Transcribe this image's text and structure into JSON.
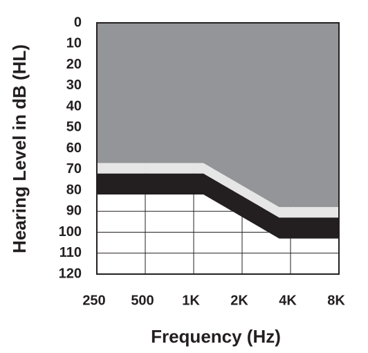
{
  "chart_data": {
    "type": "area",
    "ylabel": "Hearing Level in dB (HL)",
    "xlabel": "Frequency (Hz)",
    "x": [
      250,
      1150,
      3400,
      8000
    ],
    "series": [
      {
        "color": "#939598",
        "values": [
          67,
          67,
          88,
          88
        ]
      },
      {
        "color": "#e6e6e6",
        "values": [
          72,
          72,
          93,
          93
        ]
      },
      {
        "color": "#231f20",
        "values": [
          82,
          82,
          103,
          103
        ]
      }
    ],
    "xscale": "log",
    "xlim": [
      250,
      8000
    ],
    "xticks": [
      250,
      500,
      {
        "value": 1000,
        "label": "1K"
      },
      {
        "value": 2000,
        "label": "2K"
      },
      {
        "value": 4000,
        "label": "4K"
      },
      {
        "value": 8000,
        "label": "8K"
      }
    ],
    "ylim": [
      0,
      120
    ],
    "yinverted": true,
    "yticks": [
      0,
      10,
      20,
      30,
      40,
      50,
      60,
      70,
      80,
      90,
      100,
      110,
      120
    ],
    "grid": true
  }
}
